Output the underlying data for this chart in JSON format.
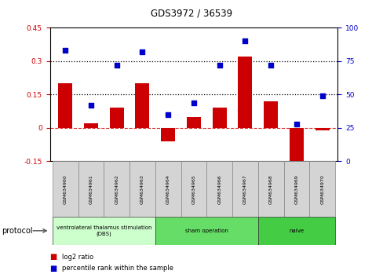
{
  "title": "GDS3972 / 36539",
  "samples": [
    "GSM634960",
    "GSM634961",
    "GSM634962",
    "GSM634963",
    "GSM634964",
    "GSM634965",
    "GSM634966",
    "GSM634967",
    "GSM634968",
    "GSM634969",
    "GSM634970"
  ],
  "log2_ratio": [
    0.2,
    0.02,
    0.09,
    0.2,
    -0.06,
    0.05,
    0.09,
    0.32,
    0.12,
    -0.17,
    -0.01
  ],
  "percentile_rank": [
    83,
    42,
    72,
    82,
    35,
    44,
    72,
    90,
    72,
    28,
    49
  ],
  "bar_color": "#cc0000",
  "dot_color": "#0000cc",
  "ylim_left": [
    -0.15,
    0.45
  ],
  "ylim_right": [
    0,
    100
  ],
  "yticks_left": [
    -0.15,
    0.0,
    0.15,
    0.3,
    0.45
  ],
  "yticks_right": [
    0,
    25,
    50,
    75,
    100
  ],
  "hlines_dotted": [
    0.15,
    0.3
  ],
  "hline_zero_color": "#cc0000",
  "protocol_groups": [
    {
      "label": "ventrolateral thalamus stimulation\n(DBS)",
      "start": 0,
      "end": 3,
      "color": "#ccffcc"
    },
    {
      "label": "sham operation",
      "start": 4,
      "end": 7,
      "color": "#66dd66"
    },
    {
      "label": "naive",
      "start": 8,
      "end": 10,
      "color": "#44cc44"
    }
  ],
  "legend_items": [
    {
      "label": "log2 ratio",
      "color": "#cc0000"
    },
    {
      "label": "percentile rank within the sample",
      "color": "#0000cc"
    }
  ],
  "protocol_label": "protocol"
}
